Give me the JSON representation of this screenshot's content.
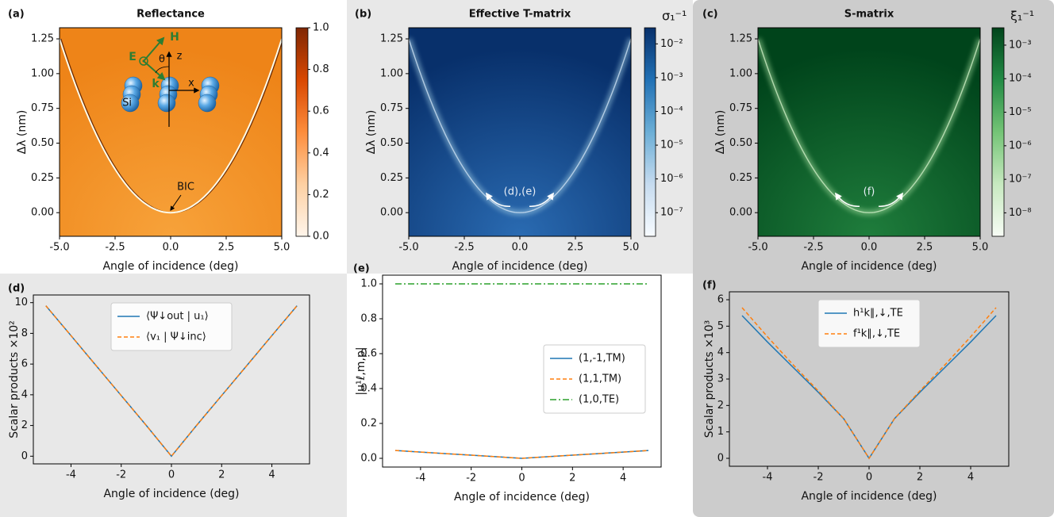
{
  "chart_data": [
    {
      "type": "heatmap",
      "label": "(a)",
      "title": "Reflectance",
      "xlabel": "Angle of incidence (deg)",
      "ylabel": "Δλ (nm)",
      "xlim": [
        -5,
        5
      ],
      "xticks": [
        {
          "value": -5,
          "label": "-5.0"
        },
        -2.5,
        {
          "value": 0,
          "label": "0.0"
        },
        2.5,
        {
          "value": 5,
          "label": "5.0"
        }
      ],
      "ylim": [
        -0.17,
        1.33
      ],
      "yticks": [
        {
          "value": 0,
          "label": "0.00"
        },
        0.25,
        {
          "value": 0.5,
          "label": "0.50"
        },
        0.75,
        {
          "value": 1,
          "label": "1.00"
        },
        1.25
      ],
      "clog": false,
      "clim": [
        0,
        1
      ],
      "cticks": [
        {
          "value": 0,
          "label": "0.0"
        },
        0.2,
        0.4,
        0.6,
        0.8,
        {
          "value": 1,
          "label": "1.0"
        }
      ],
      "cmap": [
        "#fff5eb",
        "#fdd0a2",
        "#fd8d3c",
        "#d94801",
        "#7f2704"
      ],
      "annotations": [
        "BIC"
      ],
      "inset_labels": [
        "H",
        "E",
        "θ",
        "z",
        "k",
        "x",
        "Si"
      ]
    },
    {
      "type": "heatmap",
      "label": "(b)",
      "title": "Effective T-matrix",
      "xlabel": "Angle of incidence (deg)",
      "ylabel": "Δλ (nm)",
      "xlim": [
        -5,
        5
      ],
      "xticks": [
        {
          "value": -5,
          "label": "-5.0"
        },
        -2.5,
        {
          "value": 0,
          "label": "0.0"
        },
        2.5,
        {
          "value": 5,
          "label": "5.0"
        }
      ],
      "ylim": [
        -0.17,
        1.33
      ],
      "yticks": [
        {
          "value": 0,
          "label": "0.00"
        },
        0.25,
        {
          "value": 0.5,
          "label": "0.50"
        },
        0.75,
        {
          "value": 1,
          "label": "1.00"
        },
        1.25
      ],
      "clabel": "σ₁⁻¹",
      "clog": true,
      "clim": [
        2e-08,
        0.03
      ],
      "cticks": [
        {
          "value": 0.01,
          "label": "10⁻²"
        },
        {
          "value": 0.001,
          "label": "10⁻³"
        },
        {
          "value": 0.0001,
          "label": "10⁻⁴"
        },
        {
          "value": 1e-05,
          "label": "10⁻⁵"
        },
        {
          "value": 1e-06,
          "label": "10⁻⁶"
        },
        {
          "value": 1e-07,
          "label": "10⁻⁷"
        }
      ],
      "cmap": [
        "#f7fbff",
        "#c6dbef",
        "#6baed6",
        "#2171b5",
        "#08306b"
      ],
      "annotations": [
        "(d),(e)"
      ]
    },
    {
      "type": "heatmap",
      "label": "(c)",
      "title": "S-matrix",
      "xlabel": "Angle of incidence (deg)",
      "ylabel": "Δλ (nm)",
      "xlim": [
        -5,
        5
      ],
      "xticks": [
        {
          "value": -5,
          "label": "-5.0"
        },
        -2.5,
        {
          "value": 0,
          "label": "0.0"
        },
        2.5,
        {
          "value": 5,
          "label": "5.0"
        }
      ],
      "ylim": [
        -0.17,
        1.33
      ],
      "yticks": [
        {
          "value": 0,
          "label": "0.00"
        },
        0.25,
        {
          "value": 0.5,
          "label": "0.50"
        },
        0.75,
        {
          "value": 1,
          "label": "1.00"
        },
        1.25
      ],
      "clabel": "ξ₁⁻¹",
      "clog": true,
      "clim": [
        2e-09,
        0.0033
      ],
      "cticks": [
        {
          "value": 0.001,
          "label": "10⁻³"
        },
        {
          "value": 0.0001,
          "label": "10⁻⁴"
        },
        {
          "value": 1e-05,
          "label": "10⁻⁵"
        },
        {
          "value": 1e-06,
          "label": "10⁻⁶"
        },
        {
          "value": 1e-07,
          "label": "10⁻⁷"
        },
        {
          "value": 1e-08,
          "label": "10⁻⁸"
        }
      ],
      "cmap": [
        "#f7fcf5",
        "#c7e9c0",
        "#74c476",
        "#238b45",
        "#00441b"
      ],
      "annotations": [
        "(f)"
      ]
    },
    {
      "type": "line",
      "label": "(d)",
      "xlabel": "Angle of incidence (deg)",
      "ylabel": "Scalar products ×10²",
      "xlim": [
        -5.5,
        5.5
      ],
      "xticks": [
        -4,
        -2,
        0,
        2,
        4
      ],
      "ylim": [
        -0.5,
        10.5
      ],
      "yticks": [
        0,
        2,
        4,
        6,
        8,
        10
      ],
      "legend": "upper center",
      "x": [
        -5,
        -4,
        -3,
        -2,
        -1,
        0,
        1,
        2,
        3,
        4,
        5
      ],
      "series": [
        {
          "name": "⟨Ψ↓out | u₁⟩",
          "color": "#1f77b4",
          "style": "solid",
          "values": [
            9.8,
            7.85,
            5.9,
            3.95,
            2.0,
            0,
            2.0,
            3.95,
            5.9,
            7.85,
            9.8
          ]
        },
        {
          "name": "⟨v₁ | Ψ↓inc⟩",
          "color": "#ff7f0e",
          "style": "dashed",
          "values": [
            9.8,
            7.85,
            5.9,
            3.95,
            2.0,
            0,
            2.0,
            3.95,
            5.9,
            7.85,
            9.8
          ]
        }
      ]
    },
    {
      "type": "line",
      "label": "(e)",
      "xlabel": "Angle of incidence (deg)",
      "ylabel": "|u¹ℓ,m,p|",
      "xlim": [
        -5.5,
        5.5
      ],
      "xticks": [
        -4,
        -2,
        0,
        2,
        4
      ],
      "ylim": [
        -0.05,
        1.05
      ],
      "yticks": [
        {
          "value": 0,
          "label": "0.0"
        },
        0.2,
        0.4,
        0.6,
        0.8,
        {
          "value": 1,
          "label": "1.0"
        }
      ],
      "legend": "center right",
      "x": [
        -5,
        -4,
        -3,
        -2,
        -1,
        0,
        1,
        2,
        3,
        4,
        5
      ],
      "series": [
        {
          "name": "(1,-1,TM)",
          "color": "#1f77b4",
          "style": "solid",
          "values": [
            0.045,
            0.036,
            0.027,
            0.018,
            0.009,
            0,
            0.009,
            0.018,
            0.027,
            0.036,
            0.045
          ]
        },
        {
          "name": "(1,1,TM)",
          "color": "#ff7f0e",
          "style": "dashed",
          "values": [
            0.045,
            0.036,
            0.027,
            0.018,
            0.009,
            0,
            0.009,
            0.018,
            0.027,
            0.036,
            0.045
          ]
        },
        {
          "name": "(1,0,TE)",
          "color": "#2ca02c",
          "style": "dashdot",
          "values": [
            1,
            1,
            1,
            1,
            1,
            1,
            1,
            1,
            1,
            1,
            1
          ]
        }
      ]
    },
    {
      "type": "line",
      "label": "(f)",
      "xlabel": "Angle of incidence (deg)",
      "ylabel": "Scalar products ×10³",
      "xlim": [
        -5.5,
        5.5
      ],
      "xticks": [
        -4,
        -2,
        0,
        2,
        4
      ],
      "ylim": [
        -0.3,
        6.3
      ],
      "yticks": [
        0,
        1,
        2,
        3,
        4,
        5,
        6
      ],
      "legend": "upper center",
      "x": [
        -5,
        -4,
        -3,
        -2,
        -1,
        0,
        1,
        2,
        3,
        4,
        5
      ],
      "series": [
        {
          "name": "h¹k∥,↓,TE",
          "color": "#1f77b4",
          "style": "solid",
          "values": [
            5.4,
            4.4,
            3.45,
            2.5,
            1.5,
            0,
            1.5,
            2.5,
            3.45,
            4.4,
            5.4
          ]
        },
        {
          "name": "f¹k∥,↓,TE",
          "color": "#ff7f0e",
          "style": "dashed",
          "values": [
            5.7,
            4.6,
            3.55,
            2.55,
            1.5,
            0,
            1.5,
            2.55,
            3.55,
            4.6,
            5.7
          ]
        }
      ]
    }
  ]
}
